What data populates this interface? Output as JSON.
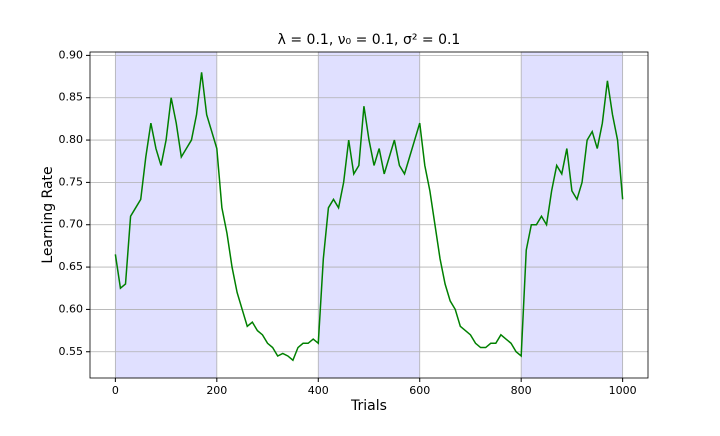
{
  "chart_data": {
    "type": "line",
    "title": "λ = 0.1, ν₀ = 0.1, σ² = 0.1",
    "x_label": "Trials",
    "y_label": "Learning Rate",
    "x": [
      0,
      10,
      20,
      30,
      40,
      50,
      60,
      70,
      80,
      90,
      100,
      110,
      120,
      130,
      140,
      150,
      160,
      170,
      180,
      190,
      200,
      210,
      220,
      230,
      240,
      250,
      260,
      270,
      280,
      290,
      300,
      310,
      320,
      330,
      340,
      350,
      360,
      370,
      380,
      390,
      400,
      410,
      420,
      430,
      440,
      450,
      460,
      470,
      480,
      490,
      500,
      510,
      520,
      530,
      540,
      550,
      560,
      570,
      580,
      590,
      600,
      610,
      620,
      630,
      640,
      650,
      660,
      670,
      680,
      690,
      700,
      710,
      720,
      730,
      740,
      750,
      760,
      770,
      780,
      790,
      800,
      810,
      820,
      830,
      840,
      850,
      860,
      870,
      880,
      890,
      900,
      910,
      920,
      930,
      940,
      950,
      960,
      970,
      980,
      990,
      1000
    ],
    "series": [
      {
        "name": "Learning Rate",
        "color": "#008000",
        "values": [
          0.665,
          0.625,
          0.63,
          0.71,
          0.72,
          0.73,
          0.78,
          0.82,
          0.79,
          0.77,
          0.8,
          0.85,
          0.82,
          0.78,
          0.79,
          0.8,
          0.83,
          0.88,
          0.83,
          0.81,
          0.79,
          0.72,
          0.69,
          0.65,
          0.62,
          0.6,
          0.58,
          0.585,
          0.575,
          0.57,
          0.56,
          0.555,
          0.545,
          0.548,
          0.545,
          0.54,
          0.555,
          0.56,
          0.56,
          0.565,
          0.56,
          0.66,
          0.72,
          0.73,
          0.72,
          0.75,
          0.8,
          0.76,
          0.77,
          0.84,
          0.8,
          0.77,
          0.79,
          0.76,
          0.78,
          0.8,
          0.77,
          0.76,
          0.78,
          0.8,
          0.82,
          0.77,
          0.74,
          0.7,
          0.66,
          0.63,
          0.61,
          0.6,
          0.58,
          0.575,
          0.57,
          0.56,
          0.555,
          0.555,
          0.56,
          0.56,
          0.57,
          0.565,
          0.56,
          0.55,
          0.545,
          0.67,
          0.7,
          0.7,
          0.71,
          0.7,
          0.74,
          0.77,
          0.76,
          0.79,
          0.74,
          0.73,
          0.75,
          0.8,
          0.81,
          0.79,
          0.82,
          0.87,
          0.83,
          0.8,
          0.73
        ]
      }
    ],
    "shaded_regions": [
      [
        0,
        200
      ],
      [
        400,
        600
      ],
      [
        800,
        1000
      ]
    ],
    "shade_color": "#e0e0ff",
    "xlim": [
      -50,
      1050
    ],
    "ylim": [
      0.519,
      0.904
    ],
    "xticks": [
      0,
      200,
      400,
      600,
      800,
      1000
    ],
    "yticks": [
      0.55,
      {
        "value": 0.6,
        "label": "0.60"
      },
      0.65,
      {
        "value": 0.7,
        "label": "0.70"
      },
      0.75,
      {
        "value": 0.8,
        "label": "0.80"
      },
      0.85,
      {
        "value": 0.9,
        "label": "0.90"
      }
    ],
    "grid": "y"
  }
}
